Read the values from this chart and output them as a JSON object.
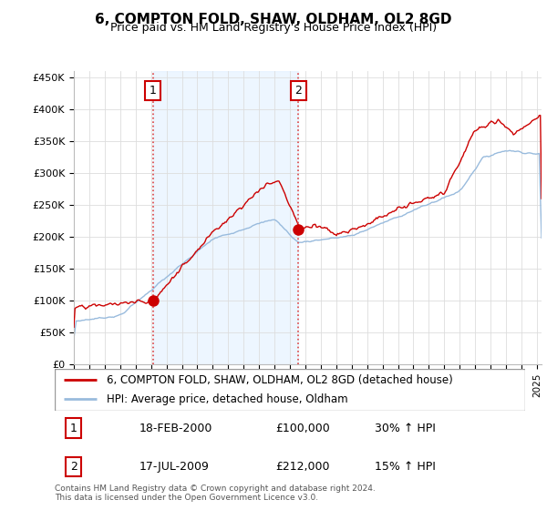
{
  "title": "6, COMPTON FOLD, SHAW, OLDHAM, OL2 8GD",
  "subtitle": "Price paid vs. HM Land Registry's House Price Index (HPI)",
  "ylabel_ticks": [
    "£0",
    "£50K",
    "£100K",
    "£150K",
    "£200K",
    "£250K",
    "£300K",
    "£350K",
    "£400K",
    "£450K"
  ],
  "ytick_values": [
    0,
    50000,
    100000,
    150000,
    200000,
    250000,
    300000,
    350000,
    400000,
    450000
  ],
  "ylim": [
    0,
    460000
  ],
  "xlim_start": 1995.0,
  "xlim_end": 2025.3,
  "property_color": "#cc0000",
  "hpi_color": "#99bbdd",
  "sale1_x": 2000.12,
  "sale1_y": 100000,
  "sale2_x": 2009.55,
  "sale2_y": 212000,
  "vline_color": "#dd4444",
  "legend_property": "6, COMPTON FOLD, SHAW, OLDHAM, OL2 8GD (detached house)",
  "legend_hpi": "HPI: Average price, detached house, Oldham",
  "table_rows": [
    {
      "num": "1",
      "date": "18-FEB-2000",
      "price": "£100,000",
      "hpi": "30% ↑ HPI"
    },
    {
      "num": "2",
      "date": "17-JUL-2009",
      "price": "£212,000",
      "hpi": "15% ↑ HPI"
    }
  ],
  "footnote": "Contains HM Land Registry data © Crown copyright and database right 2024.\nThis data is licensed under the Open Government Licence v3.0.",
  "grid_color": "#dddddd",
  "shade_color": "#ddeeff"
}
